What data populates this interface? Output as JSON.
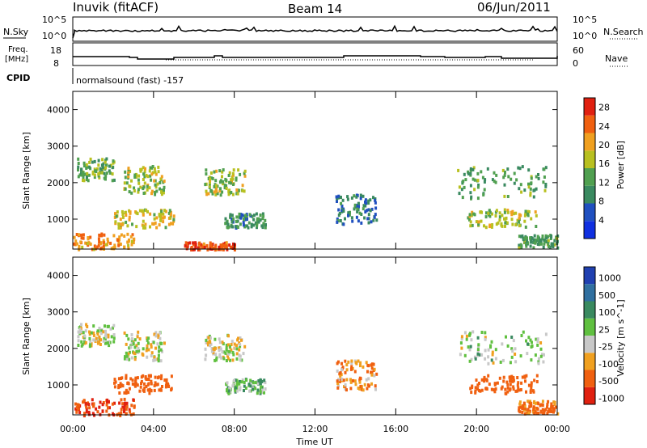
{
  "header": {
    "station": "Inuvik (fitACF)",
    "beam": "Beam 14",
    "date": "06/Jun/2011"
  },
  "top_panels": {
    "nsky_label": "N.Sky",
    "nsky_ticks": [
      "10^5",
      "10^0"
    ],
    "nsearch_label": "N.Search",
    "freq_label_1": "Freq.",
    "freq_label_2": "[MHz]",
    "freq_ticks": [
      "18",
      "8"
    ],
    "nave_label": "Nave",
    "nave_ticks": [
      "60",
      "0"
    ],
    "cpid_label": "CPID",
    "cpid_text": "normalsound (fast) -157"
  },
  "colors": {
    "power_scale": [
      "#1030e0",
      "#2050c0",
      "#3a8a60",
      "#50a050",
      "#b8c020",
      "#f0a020",
      "#f06010",
      "#e02010"
    ],
    "velocity_scale": [
      "#2040b0",
      "#3070a0",
      "#3a8a60",
      "#60c040",
      "#c8c8c8",
      "#f0a020",
      "#f06010",
      "#e02010"
    ]
  },
  "chart_data": [
    {
      "type": "heatmap",
      "title": "Power",
      "xlabel": "Time UT",
      "ylabel": "Slant Range [km]",
      "xlim": [
        "00:00",
        "24:00"
      ],
      "ylim": [
        180,
        4500
      ],
      "x_ticks": [
        "00:00",
        "04:00",
        "08:00",
        "12:00",
        "16:00",
        "20:00",
        "00:00"
      ],
      "y_ticks": [
        1000,
        2000,
        3000,
        4000
      ],
      "colorbar": {
        "label": "Power [dB]",
        "ticks": [
          4,
          8,
          12,
          16,
          20,
          24,
          28
        ],
        "range": [
          0,
          30
        ]
      },
      "regions": [
        {
          "t0": 0.0,
          "t1": 3.0,
          "r0": 200,
          "r1": 650,
          "value": 22
        },
        {
          "t0": 0.2,
          "t1": 2.0,
          "r0": 2100,
          "r1": 2700,
          "value": 14
        },
        {
          "t0": 2.5,
          "t1": 4.5,
          "r0": 1700,
          "r1": 2500,
          "value": 16
        },
        {
          "t0": 2.0,
          "t1": 5.0,
          "r0": 800,
          "r1": 1300,
          "value": 18
        },
        {
          "t0": 6.5,
          "t1": 8.5,
          "r0": 1700,
          "r1": 2400,
          "value": 16
        },
        {
          "t0": 7.5,
          "t1": 9.5,
          "r0": 800,
          "r1": 1200,
          "value": 10
        },
        {
          "t0": 5.5,
          "t1": 8.0,
          "r0": 200,
          "r1": 400,
          "value": 26
        },
        {
          "t0": 13.0,
          "t1": 15.0,
          "r0": 900,
          "r1": 1700,
          "value": 8
        },
        {
          "t0": 19.0,
          "t1": 23.5,
          "r0": 1600,
          "r1": 2500,
          "value": 12
        },
        {
          "t0": 19.5,
          "t1": 23.0,
          "r0": 800,
          "r1": 1300,
          "value": 16
        },
        {
          "t0": 22.0,
          "t1": 24.0,
          "r0": 250,
          "r1": 600,
          "value": 12
        }
      ]
    },
    {
      "type": "heatmap",
      "title": "Velocity",
      "xlabel": "Time UT",
      "ylabel": "Slant Range [km]",
      "xlim": [
        "00:00",
        "24:00"
      ],
      "ylim": [
        180,
        4500
      ],
      "x_ticks": [
        "00:00",
        "04:00",
        "08:00",
        "12:00",
        "16:00",
        "20:00",
        "00:00"
      ],
      "y_ticks": [
        1000,
        2000,
        3000,
        4000
      ],
      "colorbar": {
        "label": "Velocity [m s^-1]",
        "ticks": [
          "1000",
          "500",
          "100",
          "25",
          "-25",
          "-100",
          "-500",
          "-1000"
        ]
      },
      "regions": [
        {
          "t0": 0.0,
          "t1": 3.0,
          "r0": 200,
          "r1": 650,
          "value": -500
        },
        {
          "t0": 0.2,
          "t1": 2.0,
          "r0": 2100,
          "r1": 2700,
          "value": 0
        },
        {
          "t0": 2.5,
          "t1": 4.5,
          "r0": 1700,
          "r1": 2500,
          "value": 0
        },
        {
          "t0": 2.0,
          "t1": 5.0,
          "r0": 800,
          "r1": 1300,
          "value": -300
        },
        {
          "t0": 6.5,
          "t1": 8.5,
          "r0": 1700,
          "r1": 2400,
          "value": 0
        },
        {
          "t0": 7.5,
          "t1": 9.5,
          "r0": 800,
          "r1": 1200,
          "value": 60
        },
        {
          "t0": 13.0,
          "t1": 15.0,
          "r0": 900,
          "r1": 1700,
          "value": -80
        },
        {
          "t0": 19.0,
          "t1": 23.5,
          "r0": 1600,
          "r1": 2500,
          "value": 40
        },
        {
          "t0": 19.5,
          "t1": 23.0,
          "r0": 800,
          "r1": 1300,
          "value": -300
        },
        {
          "t0": 22.0,
          "t1": 24.0,
          "r0": 250,
          "r1": 600,
          "value": -150
        }
      ]
    }
  ]
}
